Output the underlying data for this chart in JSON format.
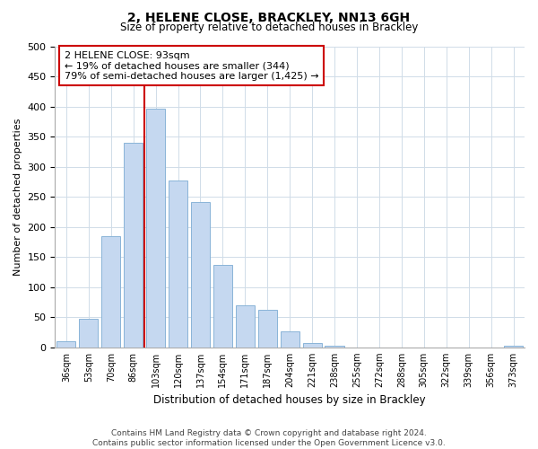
{
  "title": "2, HELENE CLOSE, BRACKLEY, NN13 6GH",
  "subtitle": "Size of property relative to detached houses in Brackley",
  "xlabel": "Distribution of detached houses by size in Brackley",
  "ylabel": "Number of detached properties",
  "bar_labels": [
    "36sqm",
    "53sqm",
    "70sqm",
    "86sqm",
    "103sqm",
    "120sqm",
    "137sqm",
    "154sqm",
    "171sqm",
    "187sqm",
    "204sqm",
    "221sqm",
    "238sqm",
    "255sqm",
    "272sqm",
    "288sqm",
    "305sqm",
    "322sqm",
    "339sqm",
    "356sqm",
    "373sqm"
  ],
  "bar_values": [
    10,
    47,
    185,
    340,
    397,
    277,
    242,
    137,
    70,
    62,
    26,
    7,
    2,
    0,
    0,
    0,
    0,
    0,
    0,
    0,
    2
  ],
  "bar_color": "#c5d8f0",
  "bar_edge_color": "#8ab4d8",
  "vline_x_index": 3.5,
  "vline_color": "#cc0000",
  "annotation_line1": "2 HELENE CLOSE: 93sqm",
  "annotation_line2": "← 19% of detached houses are smaller (344)",
  "annotation_line3": "79% of semi-detached houses are larger (1,425) →",
  "annotation_box_color": "#ffffff",
  "annotation_box_edge": "#cc0000",
  "ylim": [
    0,
    500
  ],
  "yticks": [
    0,
    50,
    100,
    150,
    200,
    250,
    300,
    350,
    400,
    450,
    500
  ],
  "footnote_line1": "Contains HM Land Registry data © Crown copyright and database right 2024.",
  "footnote_line2": "Contains public sector information licensed under the Open Government Licence v3.0.",
  "background_color": "#ffffff",
  "grid_color": "#d0dce8"
}
